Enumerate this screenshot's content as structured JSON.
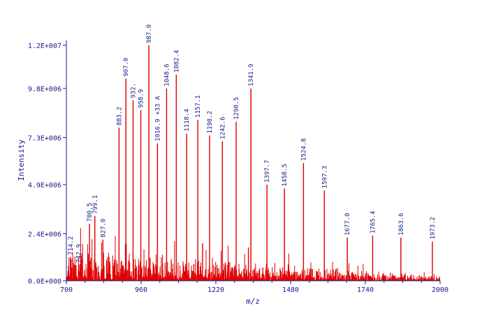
{
  "chart_data": {
    "type": "line",
    "title": "",
    "xlabel": "m/z",
    "ylabel": "Intensity",
    "xlim": [
      700,
      2000
    ],
    "ylim": [
      0,
      12000000
    ],
    "x_ticks": [
      700,
      960,
      1220,
      1480,
      1740,
      2000
    ],
    "x_tick_labels": [
      "700",
      "960",
      "1220",
      "1480",
      "1740",
      "2000"
    ],
    "y_ticks": [
      0,
      2400000,
      4900000,
      7300000,
      9800000,
      12000000
    ],
    "y_tick_labels": [
      "0.0E+000",
      "2.4E+006",
      "4.9E+006",
      "7.3E+006",
      "9.8E+006",
      "1.2E+007"
    ],
    "line_color": "#e00000",
    "axis_color": "#1a1a8c",
    "grid": false,
    "labeled_peaks": [
      {
        "x": 714.2,
        "y": 1200000,
        "label": "714.2"
      },
      {
        "x": 742.9,
        "y": 800000,
        "label": "742.9"
      },
      {
        "x": 780.5,
        "y": 2900000,
        "label": "780.5"
      },
      {
        "x": 799.1,
        "y": 3300000,
        "label": "799.1"
      },
      {
        "x": 827.0,
        "y": 2100000,
        "label": "827.0"
      },
      {
        "x": 883.2,
        "y": 7800000,
        "label": "883.2"
      },
      {
        "x": 907.0,
        "y": 10300000,
        "label": "907.0"
      },
      {
        "x": 932.0,
        "y": 9200000,
        "label": "932."
      },
      {
        "x": 958.9,
        "y": 8700000,
        "label": "958.9"
      },
      {
        "x": 987.0,
        "y": 12000000,
        "label": "987.0"
      },
      {
        "x": 1016.9,
        "y": 7000000,
        "label": "1016.9 +33 A"
      },
      {
        "x": 1048.6,
        "y": 9800000,
        "label": "1048.6"
      },
      {
        "x": 1082.4,
        "y": 10500000,
        "label": "1082.4"
      },
      {
        "x": 1118.4,
        "y": 7500000,
        "label": "1118.4"
      },
      {
        "x": 1157.1,
        "y": 8200000,
        "label": "1157.1"
      },
      {
        "x": 1198.2,
        "y": 7400000,
        "label": "1198.2"
      },
      {
        "x": 1242.6,
        "y": 7100000,
        "label": "1242.6"
      },
      {
        "x": 1290.5,
        "y": 8100000,
        "label": "1290.5"
      },
      {
        "x": 1341.9,
        "y": 9800000,
        "label": "1341.9"
      },
      {
        "x": 1397.7,
        "y": 4900000,
        "label": "1397.7"
      },
      {
        "x": 1458.5,
        "y": 4700000,
        "label": "1458.5"
      },
      {
        "x": 1524.8,
        "y": 6000000,
        "label": "1524.8"
      },
      {
        "x": 1597.3,
        "y": 4600000,
        "label": "1597.3"
      },
      {
        "x": 1677.0,
        "y": 2200000,
        "label": "1677.0"
      },
      {
        "x": 1765.4,
        "y": 2300000,
        "label": "1765.4"
      },
      {
        "x": 1863.6,
        "y": 2200000,
        "label": "1863.6"
      },
      {
        "x": 1973.2,
        "y": 2000000,
        "label": "1973.2"
      }
    ]
  }
}
